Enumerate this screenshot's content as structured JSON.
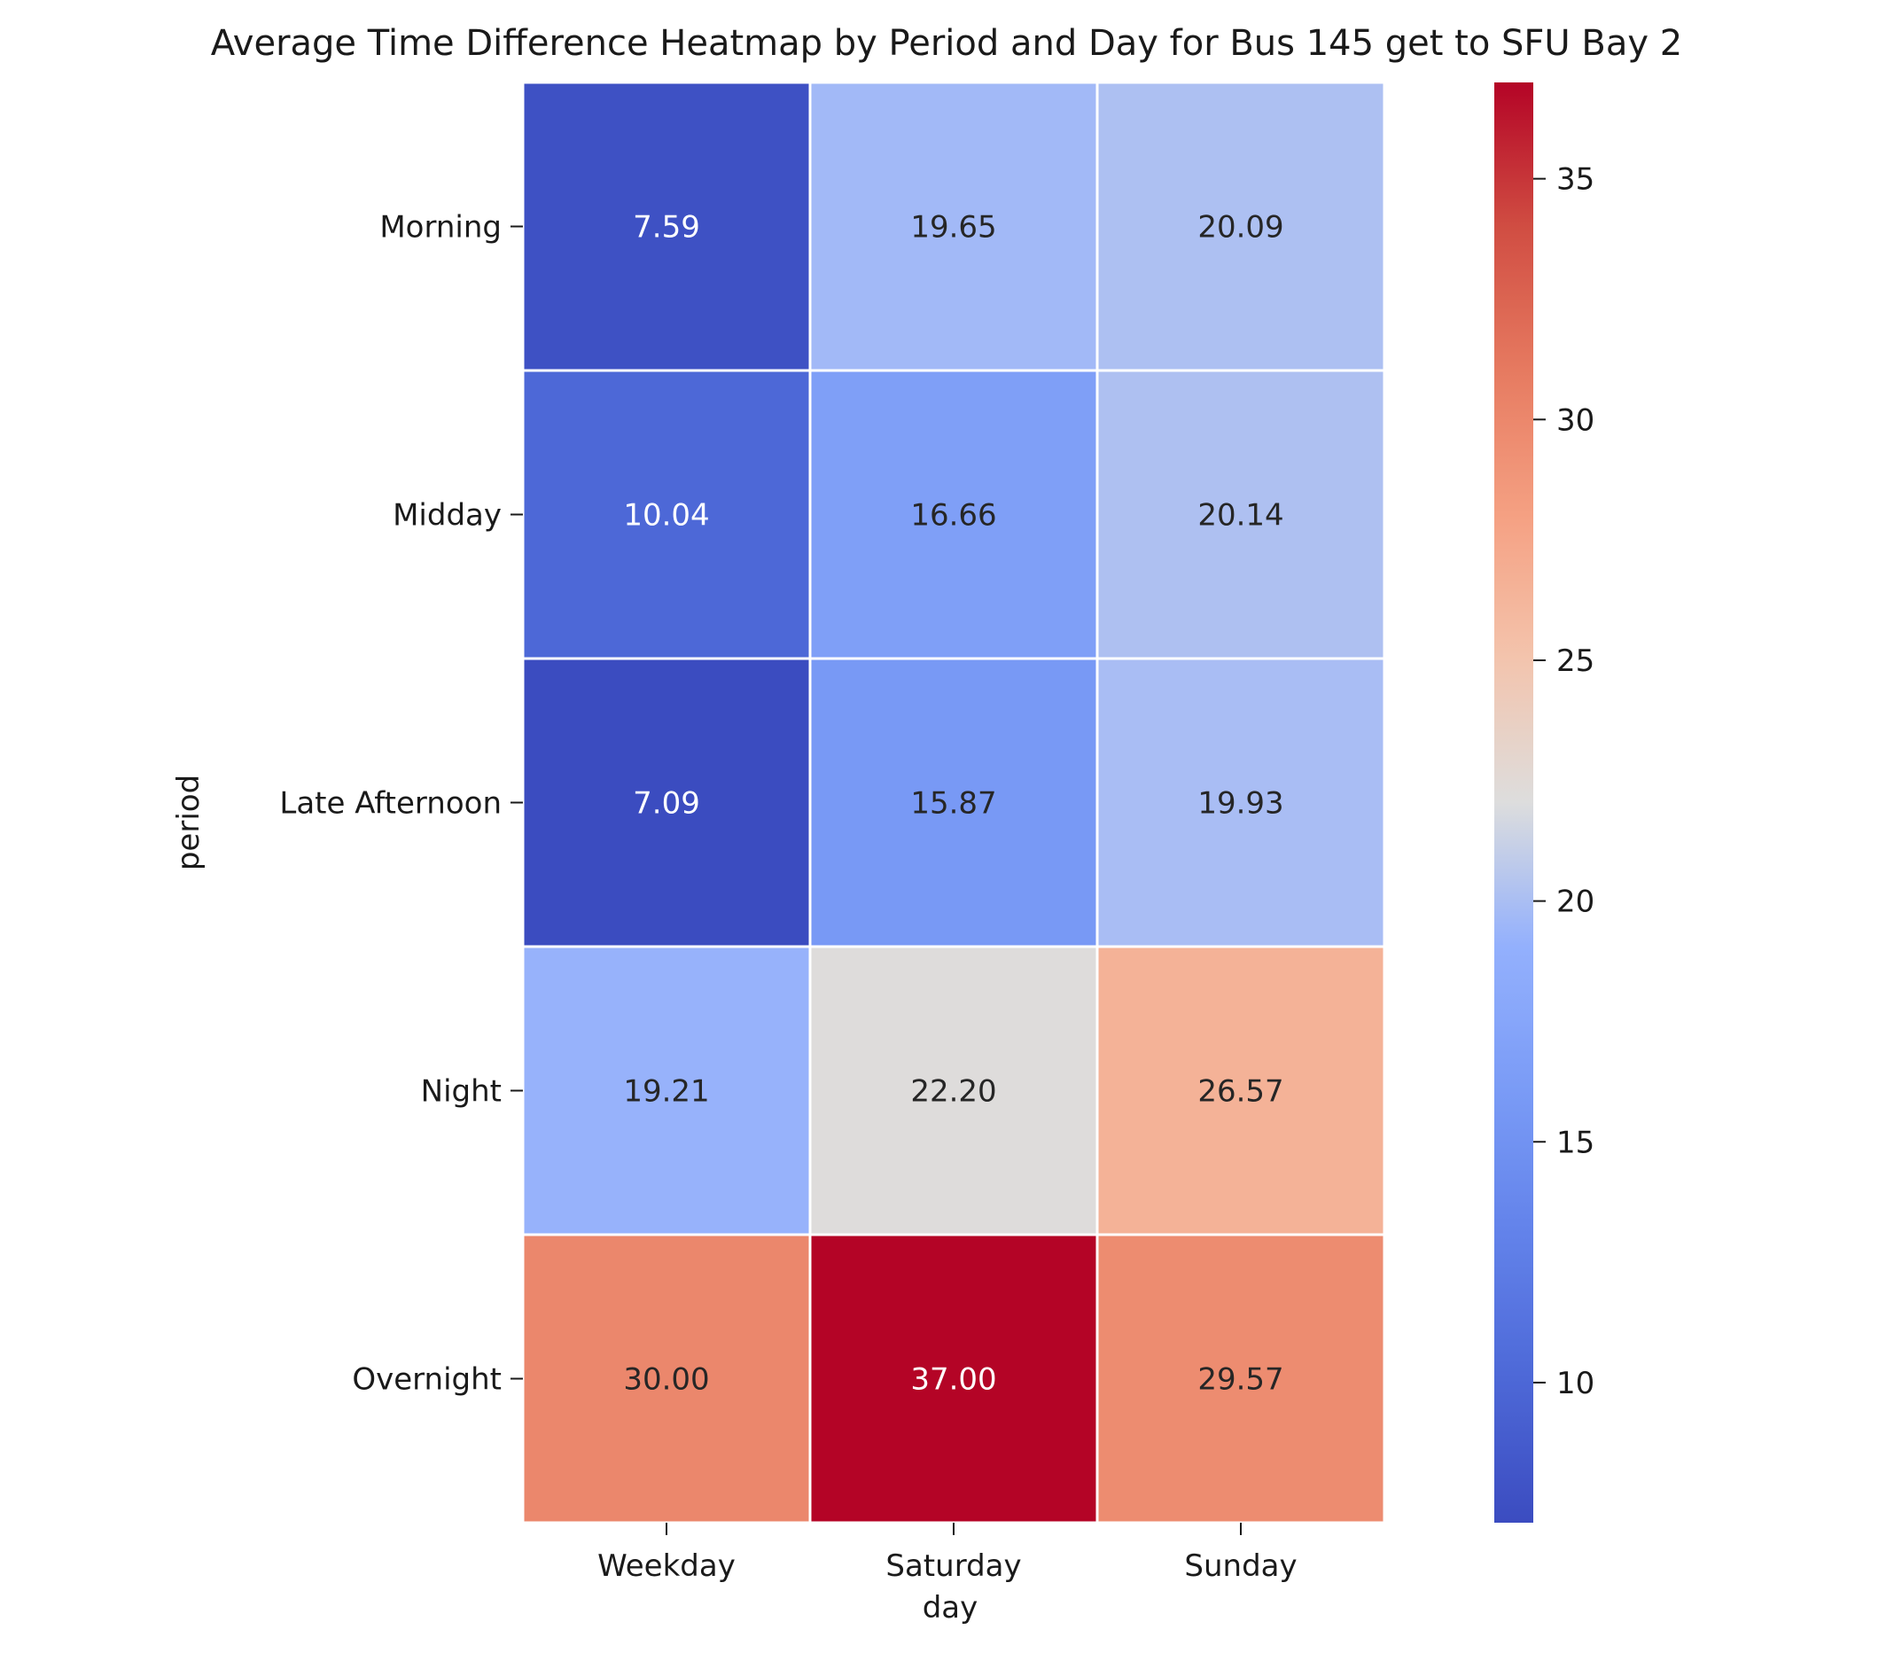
{
  "chart_data": {
    "type": "heatmap",
    "title": "Average Time Difference Heatmap by Period and Day for Bus 145 get to SFU Bay 2",
    "xlabel": "day",
    "ylabel": "period",
    "x_categories": [
      "Weekday",
      "Saturday",
      "Sunday"
    ],
    "y_categories": [
      "Morning",
      "Midday",
      "Late Afternoon",
      "Night",
      "Overnight"
    ],
    "values": [
      [
        7.59,
        19.65,
        20.09
      ],
      [
        10.04,
        16.66,
        20.14
      ],
      [
        7.09,
        15.87,
        19.93
      ],
      [
        19.21,
        22.2,
        26.57
      ],
      [
        30.0,
        37.0,
        29.57
      ]
    ],
    "value_format": "%.2f",
    "colormap": "coolwarm",
    "vmin": 7.09,
    "vmax": 37.0,
    "colorbar_ticks": [
      10,
      15,
      20,
      25,
      30,
      35
    ]
  }
}
